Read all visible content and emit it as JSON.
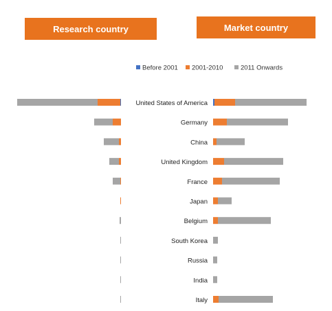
{
  "headers": {
    "research": "Research country",
    "market": "Market country"
  },
  "chart_data": {
    "type": "bar",
    "orientation": "horizontal",
    "stacked": true,
    "legend_position": "top",
    "grid": false,
    "categories": [
      "United States of America",
      "Germany",
      "China",
      "United Kingdom",
      "France",
      "Japan",
      "Belgium",
      "South Korea",
      "Russia",
      "India",
      "Italy"
    ],
    "series_names": [
      "Before 2001",
      "2001-2010",
      "2011 Onwards"
    ],
    "colors": [
      "#4472c4",
      "#ed7d31",
      "#a5a5a5"
    ],
    "panels": [
      {
        "name": "Research country",
        "direction": "left",
        "series": [
          {
            "name": "Before 2001",
            "values": [
              1,
              0,
              0,
              0,
              0,
              0,
              0,
              0,
              0,
              0,
              0
            ]
          },
          {
            "name": "2001-2010",
            "values": [
              33,
              12,
              3,
              3,
              1,
              1,
              0,
              0,
              0,
              0,
              0
            ]
          },
          {
            "name": "2011 Onwards",
            "values": [
              117,
              27,
              22,
              14,
              11,
              0,
              2,
              1,
              1,
              1,
              1
            ]
          }
        ]
      },
      {
        "name": "Market country",
        "direction": "right",
        "series": [
          {
            "name": "Before 2001",
            "values": [
              2,
              0,
              0,
              0,
              0,
              0,
              0,
              0,
              0,
              0,
              0
            ]
          },
          {
            "name": "2001-2010",
            "values": [
              30,
              20,
              5,
              16,
              13,
              7,
              7,
              0,
              0,
              0,
              8
            ]
          },
          {
            "name": "2011 Onwards",
            "values": [
              104,
              89,
              41,
              86,
              84,
              20,
              77,
              7,
              6,
              6,
              79
            ]
          }
        ]
      }
    ]
  }
}
